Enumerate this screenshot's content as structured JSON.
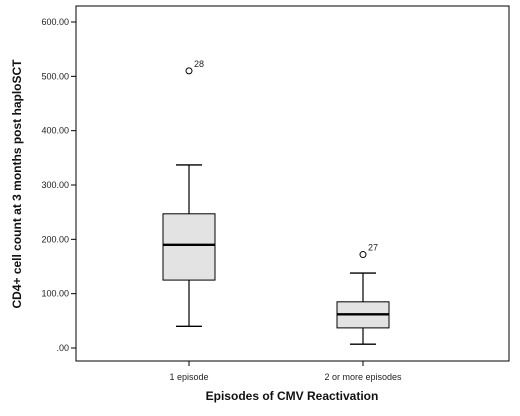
{
  "chart_data": {
    "type": "boxplot",
    "xlabel": "Episodes of CMV Reactivation",
    "ylabel": "CD4+ cell count at 3 months post haploSCT",
    "ylim": [
      0,
      600
    ],
    "yticks": [
      0,
      100,
      200,
      300,
      400,
      500,
      600
    ],
    "ytick_labels": [
      ".00",
      "100.00",
      "200.00",
      "300.00",
      "400.00",
      "500.00",
      "600.00"
    ],
    "grid": false,
    "box_fill": "#e3e3e3",
    "categories": [
      "1 episode",
      "2 or more episodes"
    ],
    "boxes": [
      {
        "category": "1 episode",
        "whisker_low": 40,
        "q1": 125,
        "median": 190,
        "q3": 247,
        "whisker_high": 337,
        "outliers": [
          {
            "value": 510,
            "label": "28"
          }
        ]
      },
      {
        "category": "2 or more episodes",
        "whisker_low": 7,
        "q1": 37,
        "median": 62,
        "q3": 85,
        "whisker_high": 138,
        "outliers": [
          {
            "value": 172,
            "label": "27"
          }
        ]
      }
    ]
  }
}
